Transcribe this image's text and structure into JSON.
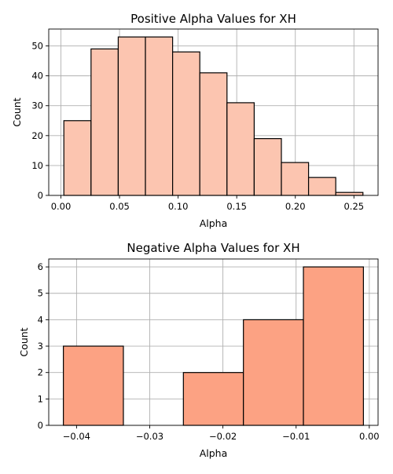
{
  "chart_data": [
    {
      "type": "bar",
      "title": "Positive Alpha Values for XH",
      "xlabel": "Alpha",
      "ylabel": "Count",
      "bin_edges": [
        0.0025,
        0.0257,
        0.0489,
        0.0721,
        0.0953,
        0.1185,
        0.1417,
        0.1649,
        0.1881,
        0.2113,
        0.2345,
        0.2577
      ],
      "values": [
        25,
        49,
        53,
        53,
        48,
        41,
        31,
        19,
        11,
        6,
        1
      ],
      "xlim": [
        -0.0104,
        0.2706
      ],
      "ylim": [
        0,
        55.65
      ],
      "xticks": [
        0.0,
        0.05,
        0.1,
        0.15,
        0.2,
        0.25
      ],
      "xtick_labels": [
        "0.00",
        "0.05",
        "0.10",
        "0.15",
        "0.20",
        "0.25"
      ],
      "yticks": [
        0,
        10,
        20,
        30,
        40,
        50
      ],
      "ytick_labels": [
        "0",
        "10",
        "20",
        "30",
        "40",
        "50"
      ],
      "grid": true,
      "bar_color": "#fcc5b0"
    },
    {
      "type": "bar",
      "title": "Negative Alpha Values for XH",
      "xlabel": "Alpha",
      "ylabel": "Count",
      "bin_edges": [
        -0.0418,
        -0.0336,
        -0.0254,
        -0.0172,
        -0.009,
        -0.0008
      ],
      "values": [
        3,
        0,
        2,
        4,
        6
      ],
      "xlim": [
        -0.0438,
        0.0012
      ],
      "ylim": [
        0,
        6.3
      ],
      "xticks": [
        -0.04,
        -0.03,
        -0.02,
        -0.01,
        0.0
      ],
      "xtick_labels": [
        "−0.04",
        "−0.03",
        "−0.02",
        "−0.01",
        "0.00"
      ],
      "yticks": [
        0,
        1,
        2,
        3,
        4,
        5,
        6
      ],
      "ytick_labels": [
        "0",
        "1",
        "2",
        "3",
        "4",
        "5",
        "6"
      ],
      "grid": true,
      "bar_color": "#fca283"
    }
  ]
}
